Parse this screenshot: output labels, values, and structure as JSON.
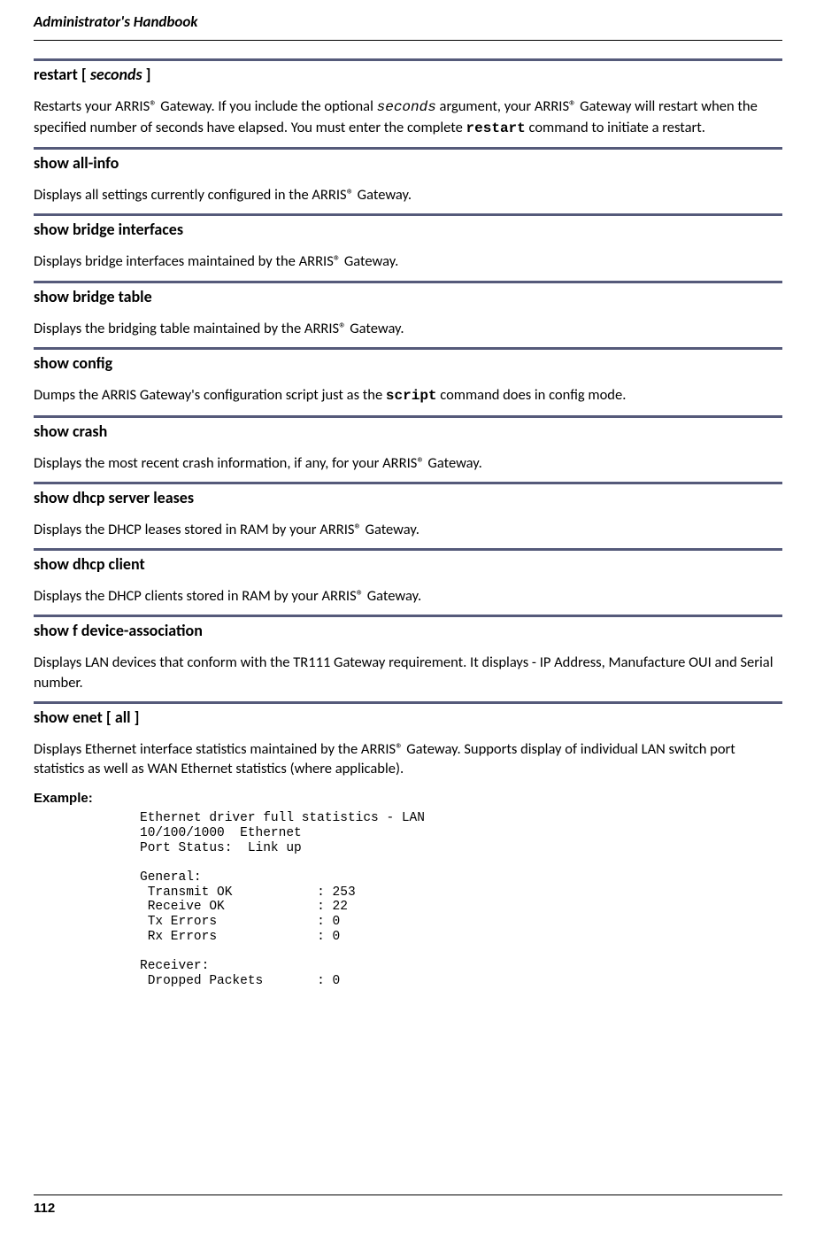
{
  "header": {
    "book_title": "Administrator's Handbook"
  },
  "colors": {
    "section_border": "#555a7a",
    "text": "#000000",
    "background": "#ffffff"
  },
  "typography": {
    "body_family": "Calibri",
    "mono_family": "Courier New",
    "heading_size_pt": 18,
    "body_size_pt": 16.5,
    "code_size_pt": 14.5
  },
  "sections": {
    "restart": {
      "head_prefix": "restart [ ",
      "head_arg": "seconds",
      "head_suffix": " ]",
      "desc_1": "Restarts your ARRIS® Gateway. If you include the optional ",
      "inline_arg": "seconds",
      "desc_2": " argument, your ARRIS® Gateway will restart when the specified number of seconds have elapsed. You must enter the complete ",
      "inline_cmd": "restart",
      "desc_3": " command to initiate a restart."
    },
    "show_all_info": {
      "head": "show all-info",
      "desc": "Displays all settings currently configured in the ARRIS® Gateway."
    },
    "show_bridge_ifaces": {
      "head": "show bridge interfaces",
      "desc": "Displays bridge interfaces maintained by the ARRIS® Gateway."
    },
    "show_bridge_table": {
      "head": "show bridge table",
      "desc": "Displays the bridging table maintained by the ARRIS® Gateway."
    },
    "show_config": {
      "head": "show config",
      "desc_1": "Dumps the ARRIS Gateway's configuration script just as the ",
      "inline_cmd": "script",
      "desc_2": " command does in config mode."
    },
    "show_crash": {
      "head": "show crash",
      "desc": "Displays the most recent crash information, if any, for your ARRIS® Gateway."
    },
    "show_dhcp_leases": {
      "head": "show dhcp server leases",
      "desc": "Displays the DHCP leases stored in RAM by your ARRIS® Gateway."
    },
    "show_dhcp_client": {
      "head": "show dhcp client",
      "desc": "Displays the DHCP clients stored in RAM by your ARRIS® Gateway."
    },
    "show_f_device": {
      "head": "show f device-association",
      "desc": "Displays LAN devices that conform with the TR111 Gateway requirement. It displays - IP Address, Manufacture OUI and Serial number."
    },
    "show_enet": {
      "head": "show enet [ all ]",
      "desc": "Displays Ethernet interface statistics maintained by the ARRIS® Gateway. Supports display of individual LAN switch port statistics as well as WAN Ethernet statistics (where applicable).",
      "example_label": "Example:",
      "code": "Ethernet driver full statistics - LAN\n10/100/1000  Ethernet\nPort Status:  Link up\n\nGeneral:\n Transmit OK           : 253\n Receive OK            : 22\n Tx Errors             : 0\n Rx Errors             : 0\n\nReceiver:\n Dropped Packets       : 0"
    }
  },
  "footer": {
    "page_number": "112"
  }
}
